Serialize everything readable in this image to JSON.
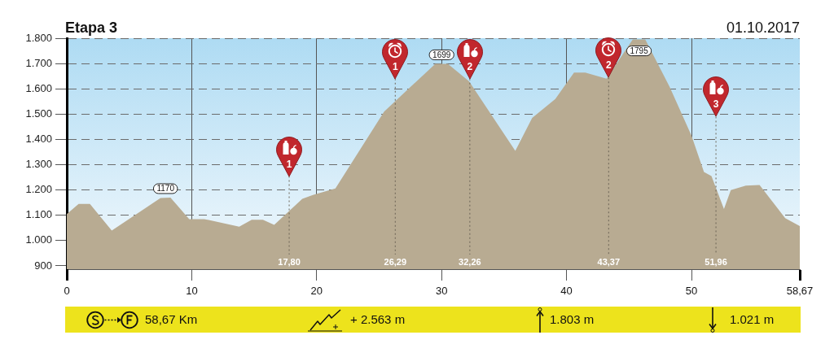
{
  "chart_data": {
    "type": "area",
    "title": "Etapa 3",
    "subtitle": "01.10.2017",
    "x": [
      0,
      0.95,
      1.85,
      3.6,
      7.5,
      8.3,
      9.8,
      11.0,
      13.8,
      14.8,
      15.7,
      16.6,
      18.85,
      19.7,
      21.5,
      25.4,
      29.5,
      30.5,
      32.2,
      35.9,
      37.25,
      39.1,
      40.6,
      41.5,
      43.2,
      45.3,
      46.3,
      48.25,
      50.0,
      51.0,
      51.6,
      52.6,
      53.15,
      54.35,
      55.45,
      57.5,
      58.67
    ],
    "values": [
      1105,
      1145,
      1145,
      1040,
      1168,
      1170,
      1085,
      1085,
      1055,
      1082,
      1082,
      1062,
      1165,
      1180,
      1206,
      1510,
      1699,
      1699,
      1630,
      1355,
      1485,
      1560,
      1664,
      1664,
      1640,
      1795,
      1795,
      1608,
      1415,
      1271,
      1255,
      1125,
      1200,
      1217,
      1220,
      1089,
      1057
    ],
    "color": "#b8ab92",
    "xlim": [
      0,
      58.67
    ],
    "xticks": [
      0,
      10,
      20,
      30,
      40,
      50,
      {
        "value": 58.67,
        "label": "58,67"
      }
    ],
    "ylim": [
      887,
      1800
    ],
    "yticks": [
      900,
      {
        "value": 1000,
        "label": "1.000"
      },
      {
        "value": 1100,
        "label": "1.100"
      },
      {
        "value": 1200,
        "label": "1.200"
      },
      {
        "value": 1300,
        "label": "1.300"
      },
      {
        "value": 1400,
        "label": "1.400"
      },
      {
        "value": 1500,
        "label": "1.500"
      },
      {
        "value": 1600,
        "label": "1.600"
      },
      {
        "value": 1700,
        "label": "1.700"
      },
      {
        "value": 1800,
        "label": "1.800"
      }
    ],
    "grid": true,
    "ref_lines": [
      {
        "axis": "x",
        "value": 17.8,
        "label": "17,80",
        "line_style": "dotted",
        "color": "#6b6356"
      },
      {
        "axis": "x",
        "value": 26.29,
        "label": "26,29",
        "line_style": "dotted",
        "color": "#6b6356"
      },
      {
        "axis": "x",
        "value": 32.26,
        "label": "32,26",
        "line_style": "dotted",
        "color": "#6b6356"
      },
      {
        "axis": "x",
        "value": 43.37,
        "label": "43,37",
        "line_style": "dotted",
        "color": "#6b6356"
      },
      {
        "axis": "x",
        "value": 51.96,
        "label": "51,96",
        "line_style": "dotted",
        "color": "#6b6356"
      }
    ],
    "annotations": [
      {
        "text": "1170",
        "x": 7.9,
        "y": 1170
      },
      {
        "text": "1699",
        "x": 30,
        "y": 1699
      },
      {
        "text": "1795",
        "x": 45.8,
        "y": 1795
      },
      {
        "text": "1",
        "x": 17.8,
        "y": 1255
      },
      {
        "text": "1",
        "x": 26.29,
        "y": 1640
      },
      {
        "text": "2",
        "x": 32.26,
        "y": 1640
      },
      {
        "text": "2",
        "x": 43.37,
        "y": 1645
      },
      {
        "text": "3",
        "x": 51.96,
        "y": 1490
      },
      "58,67 Km",
      "+ 2.563 m",
      "1.803 m",
      "1.021 m"
    ]
  }
}
